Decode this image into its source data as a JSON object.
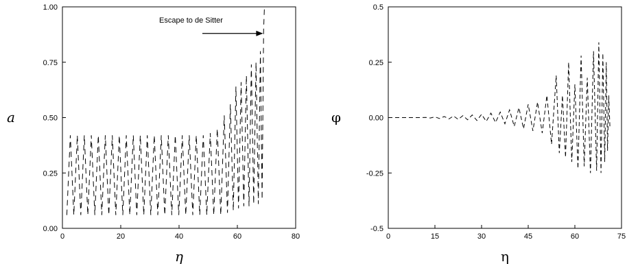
{
  "chart_data": [
    {
      "type": "line",
      "title": "",
      "xlabel": "η",
      "ylabel": "a",
      "xlim": [
        0,
        80
      ],
      "ylim": [
        0,
        1.0
      ],
      "xticks": [
        {
          "value": 0,
          "label": "0"
        },
        {
          "value": 20,
          "label": "20"
        },
        {
          "value": 40,
          "label": "40"
        },
        {
          "value": 60,
          "label": "60"
        },
        {
          "value": 80,
          "label": "80"
        }
      ],
      "yticks": [
        {
          "value": 0.0,
          "label": "0.00"
        },
        {
          "value": 0.25,
          "label": "0.25"
        },
        {
          "value": 0.5,
          "label": "0.50"
        },
        {
          "value": 0.75,
          "label": "0.75"
        },
        {
          "value": 1.0,
          "label": "1.00"
        }
      ],
      "line_style": "dashed",
      "annotation": {
        "text": "Escape to de Sitter",
        "arrow_from": [
          48,
          0.88
        ],
        "arrow_to": [
          68.8,
          0.88
        ]
      },
      "series": [
        {
          "x": [
            1.5,
            2.7,
            3.9,
            5.1,
            6.3,
            7.5,
            8.7,
            9.9,
            11.1,
            12.3,
            13.5,
            14.7,
            15.9,
            17.1,
            18.3,
            19.5,
            20.7,
            21.9,
            23.1,
            24.3,
            25.5,
            26.7,
            27.9,
            29.1,
            30.3,
            31.5,
            32.7,
            33.9,
            35.1,
            36.3,
            37.5,
            38.7,
            39.9,
            41.1,
            42.3,
            43.5,
            44.7,
            45.9,
            47.1,
            48.3,
            49.5,
            50.7,
            51.9,
            53.1,
            54.3,
            55.5,
            56.6,
            57.6,
            58.6,
            59.5,
            60.4,
            61.3,
            62.2,
            63.1,
            64.0,
            64.8,
            65.6,
            66.4,
            67.2,
            67.9,
            68.5,
            69.0,
            69.3
          ],
          "y": [
            0.06,
            0.42,
            0.06,
            0.42,
            0.06,
            0.42,
            0.06,
            0.42,
            0.06,
            0.42,
            0.06,
            0.42,
            0.06,
            0.42,
            0.06,
            0.42,
            0.06,
            0.42,
            0.06,
            0.42,
            0.06,
            0.42,
            0.06,
            0.42,
            0.06,
            0.42,
            0.06,
            0.42,
            0.06,
            0.42,
            0.06,
            0.42,
            0.06,
            0.42,
            0.06,
            0.42,
            0.06,
            0.42,
            0.06,
            0.42,
            0.06,
            0.43,
            0.06,
            0.45,
            0.06,
            0.51,
            0.07,
            0.56,
            0.08,
            0.64,
            0.09,
            0.66,
            0.1,
            0.69,
            0.1,
            0.74,
            0.11,
            0.75,
            0.11,
            0.8,
            0.13,
            0.9,
            1.0
          ]
        }
      ]
    },
    {
      "type": "line",
      "title": "",
      "xlabel": "η",
      "ylabel": "φ",
      "xlim": [
        0,
        75
      ],
      "ylim": [
        -0.5,
        0.5
      ],
      "xticks": [
        {
          "value": 0,
          "label": "0"
        },
        {
          "value": 15,
          "label": "15"
        },
        {
          "value": 30,
          "label": "30"
        },
        {
          "value": 45,
          "label": "45"
        },
        {
          "value": 60,
          "label": "60"
        },
        {
          "value": 75,
          "label": "75"
        }
      ],
      "yticks": [
        {
          "value": -0.5,
          "label": "-0.5"
        },
        {
          "value": -0.25,
          "label": "-0.25"
        },
        {
          "value": 0.0,
          "label": "0.00"
        },
        {
          "value": 0.25,
          "label": "0.25"
        },
        {
          "value": 0.5,
          "label": "0.5"
        }
      ],
      "line_style": "dashed",
      "series": [
        {
          "x": [
            0,
            2,
            4,
            6,
            8,
            10,
            12,
            13.5,
            15,
            16.5,
            18,
            19.5,
            21,
            22.5,
            24,
            25.5,
            27,
            28.5,
            30,
            31.5,
            33,
            34.5,
            36,
            37.5,
            39,
            40.5,
            42,
            43.5,
            45,
            46.5,
            48,
            49.5,
            51,
            52.5,
            54,
            55,
            56,
            57,
            58,
            59,
            60,
            61,
            62,
            63,
            64,
            65,
            66,
            67,
            67.7,
            68.4,
            69,
            69.6,
            70.1,
            70.5,
            70.9,
            71.3
          ],
          "y": [
            0.0,
            0.0,
            0.0,
            0.0,
            0.0,
            0.0,
            0.001,
            -0.002,
            0.003,
            -0.004,
            0.005,
            -0.006,
            0.007,
            -0.008,
            0.009,
            -0.01,
            0.012,
            -0.013,
            0.015,
            -0.017,
            0.02,
            -0.022,
            0.025,
            -0.028,
            0.035,
            -0.04,
            0.045,
            -0.05,
            0.06,
            -0.06,
            0.07,
            -0.07,
            0.1,
            -0.12,
            0.19,
            -0.16,
            0.1,
            -0.18,
            0.25,
            -0.2,
            0.15,
            -0.23,
            0.28,
            -0.22,
            0.18,
            -0.25,
            0.3,
            -0.24,
            0.34,
            -0.25,
            0.29,
            -0.2,
            0.25,
            -0.15,
            0.1,
            -0.05
          ]
        }
      ]
    }
  ]
}
